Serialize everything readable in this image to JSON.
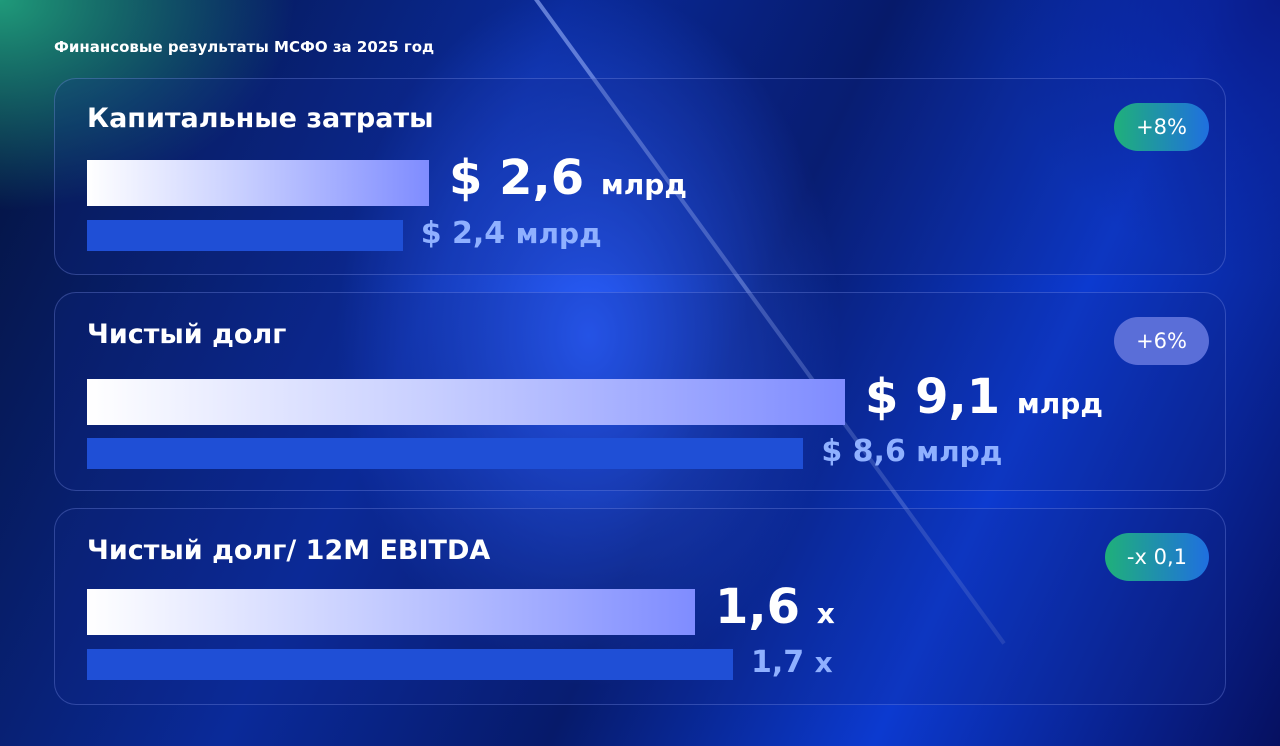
{
  "title": "Финансовые результаты МСФО за 2025 год",
  "chart_data": [
    {
      "type": "bar",
      "orientation": "horizontal",
      "title": "Капитальные затраты",
      "badge": "+8%",
      "values": [
        2.6,
        2.4
      ],
      "value_labels": [
        "2,6",
        "2,4"
      ],
      "prefix": "$",
      "unit": "млрд"
    },
    {
      "type": "bar",
      "orientation": "horizontal",
      "title": "Чистый долг",
      "badge": "+6%",
      "values": [
        9.1,
        8.6
      ],
      "value_labels": [
        "9,1",
        "8,6"
      ],
      "prefix": "$",
      "unit": "млрд"
    },
    {
      "type": "bar",
      "orientation": "horizontal",
      "title": "Чистый долг/ 12M EBITDA",
      "badge": "-x 0,1",
      "values": [
        1.6,
        1.7
      ],
      "value_labels": [
        "1,6",
        "1,7"
      ],
      "unit": "x"
    }
  ]
}
